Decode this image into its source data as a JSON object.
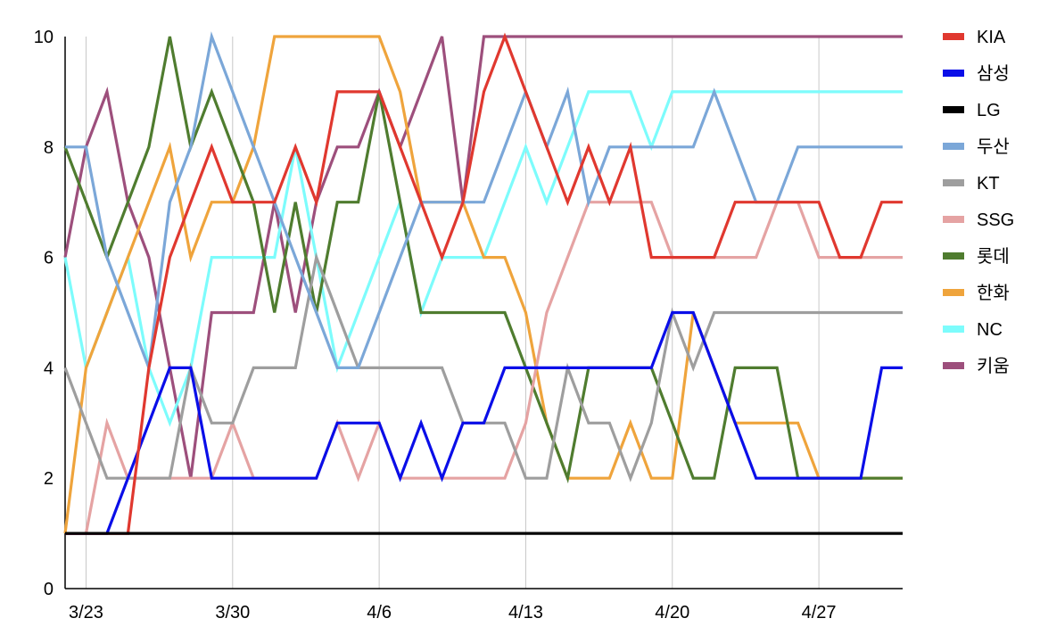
{
  "chart_data": {
    "type": "line",
    "title": "",
    "xlabel": "",
    "ylabel": "",
    "x_start": "3/22",
    "x_ticks": [
      "3/23",
      "3/30",
      "4/6",
      "4/13",
      "4/20",
      "4/27"
    ],
    "ylim": [
      0,
      10
    ],
    "y_ticks": [
      0,
      2,
      4,
      6,
      8,
      10
    ],
    "legend_position": "right",
    "grid": "vertical",
    "series": [
      {
        "name": "KIA",
        "color": "#e0382f",
        "values": [
          1,
          1,
          1,
          1,
          4,
          6,
          7,
          8,
          7,
          7,
          7,
          8,
          7,
          9,
          9,
          9,
          8,
          7,
          6,
          7,
          9,
          10,
          9,
          8,
          7,
          8,
          7,
          8,
          6,
          6,
          6,
          6,
          7,
          7,
          7,
          7,
          7,
          6,
          6,
          7,
          7
        ]
      },
      {
        "name": "삼성",
        "color": "#0a0ee8",
        "values": [
          1,
          1,
          1,
          2,
          3,
          4,
          4,
          2,
          2,
          2,
          2,
          2,
          2,
          3,
          3,
          3,
          2,
          3,
          2,
          3,
          3,
          4,
          4,
          4,
          4,
          4,
          4,
          4,
          4,
          5,
          5,
          4,
          3,
          2,
          2,
          2,
          2,
          2,
          2,
          4,
          4
        ]
      },
      {
        "name": "LG",
        "color": "#000000",
        "values": [
          1,
          1,
          1,
          1,
          1,
          1,
          1,
          1,
          1,
          1,
          1,
          1,
          1,
          1,
          1,
          1,
          1,
          1,
          1,
          1,
          1,
          1,
          1,
          1,
          1,
          1,
          1,
          1,
          1,
          1,
          1,
          1,
          1,
          1,
          1,
          1,
          1,
          1,
          1,
          1,
          1
        ]
      },
      {
        "name": "두산",
        "color": "#7ba7d8",
        "values": [
          8,
          8,
          6,
          5,
          4,
          7,
          8,
          10,
          9,
          8,
          7,
          6,
          5,
          4,
          4,
          5,
          6,
          7,
          7,
          7,
          7,
          8,
          9,
          8,
          9,
          7,
          8,
          8,
          8,
          8,
          8,
          9,
          8,
          7,
          7,
          8,
          8,
          8,
          8,
          8,
          8
        ]
      },
      {
        "name": "KT",
        "color": "#9e9e9e",
        "values": [
          4,
          3,
          2,
          2,
          2,
          2,
          4,
          3,
          3,
          4,
          4,
          4,
          6,
          5,
          4,
          4,
          4,
          4,
          4,
          3,
          3,
          3,
          2,
          2,
          4,
          3,
          3,
          2,
          3,
          5,
          4,
          5,
          5,
          5,
          5,
          5,
          5,
          5,
          5,
          5,
          5
        ]
      },
      {
        "name": "SSG",
        "color": "#e5a3a3",
        "values": [
          1,
          1,
          3,
          2,
          2,
          2,
          2,
          2,
          3,
          2,
          2,
          2,
          2,
          3,
          2,
          3,
          2,
          2,
          2,
          2,
          2,
          2,
          3,
          5,
          6,
          7,
          7,
          7,
          7,
          6,
          6,
          6,
          6,
          6,
          7,
          7,
          6,
          6,
          6,
          6,
          6
        ]
      },
      {
        "name": "롯데",
        "color": "#4f7c2f",
        "values": [
          8,
          7,
          6,
          7,
          8,
          10,
          8,
          9,
          8,
          7,
          5,
          7,
          5,
          7,
          7,
          9,
          7,
          5,
          5,
          5,
          5,
          5,
          4,
          3,
          2,
          4,
          4,
          4,
          4,
          3,
          2,
          2,
          4,
          4,
          4,
          2,
          2,
          2,
          2,
          2,
          2
        ]
      },
      {
        "name": "한화",
        "color": "#efa43c",
        "values": [
          1,
          4,
          5,
          6,
          7,
          8,
          6,
          7,
          7,
          8,
          10,
          10,
          10,
          10,
          10,
          10,
          9,
          7,
          7,
          7,
          6,
          6,
          5,
          3,
          2,
          2,
          2,
          3,
          2,
          2,
          5,
          4,
          3,
          3,
          3,
          3,
          2,
          2,
          2,
          2,
          2
        ]
      },
      {
        "name": "NC",
        "color": "#7dfcfc",
        "values": [
          6,
          4,
          5,
          6,
          4,
          3,
          4,
          6,
          6,
          6,
          6,
          8,
          6,
          4,
          5,
          6,
          7,
          5,
          6,
          6,
          6,
          7,
          8,
          7,
          8,
          9,
          9,
          9,
          8,
          9,
          9,
          9,
          9,
          9,
          9,
          9,
          9,
          9,
          9,
          9,
          9
        ]
      },
      {
        "name": "키움",
        "color": "#9d4f7c",
        "values": [
          6,
          8,
          9,
          7,
          6,
          4,
          2,
          5,
          5,
          5,
          7,
          5,
          7,
          8,
          8,
          9,
          8,
          9,
          10,
          7,
          10,
          10,
          10,
          10,
          10,
          10,
          10,
          10,
          10,
          10,
          10,
          10,
          10,
          10,
          10,
          10,
          10,
          10,
          10,
          10,
          10
        ]
      }
    ]
  }
}
